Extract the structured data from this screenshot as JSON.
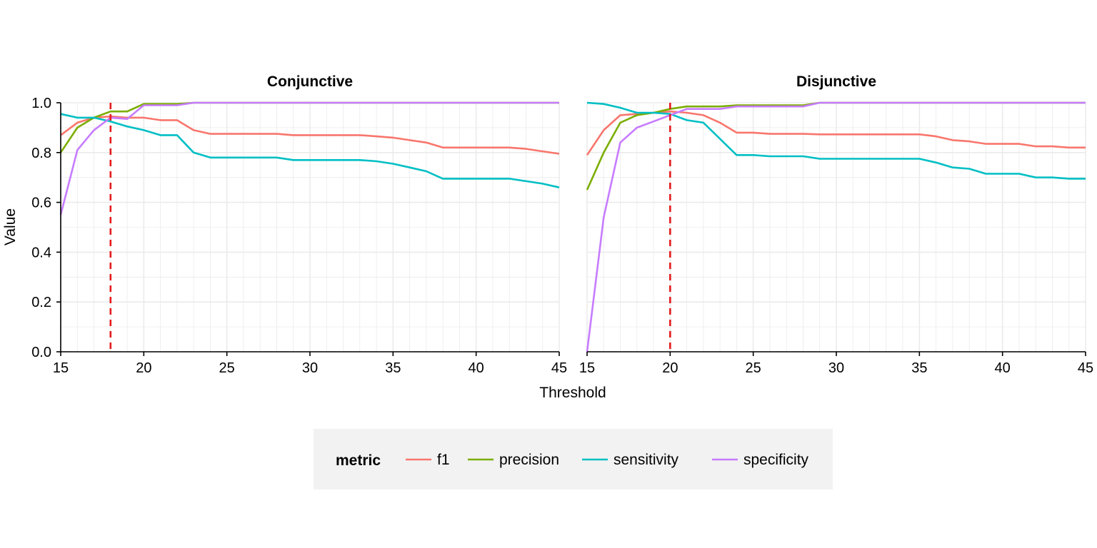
{
  "chart_data": {
    "type": "line",
    "ylabel": "Value",
    "xlabel": "Threshold",
    "xlim": [
      15,
      45
    ],
    "ylim": [
      0,
      1
    ],
    "x_ticks": [
      15,
      20,
      25,
      30,
      35,
      40,
      45
    ],
    "y_ticks": [
      "0.0",
      "0.2",
      "0.4",
      "0.6",
      "0.8",
      "1.0"
    ],
    "grid": true,
    "legend": {
      "title": "metric",
      "placement": "bottom",
      "entries": [
        "f1",
        "precision",
        "sensitivity",
        "specificity"
      ]
    },
    "colors": {
      "f1": "#F8766D",
      "precision": "#7CAE00",
      "sensitivity": "#00BFC4",
      "specificity": "#C77CFF",
      "threshold_line": "#E41A1C",
      "legend_bg": "#F2F2F2",
      "grid": "#EBEBEB"
    },
    "x": [
      15,
      16,
      17,
      18,
      19,
      20,
      21,
      22,
      23,
      24,
      25,
      26,
      27,
      28,
      29,
      30,
      31,
      32,
      33,
      34,
      35,
      36,
      37,
      38,
      39,
      40,
      41,
      42,
      43,
      44,
      45
    ],
    "panels": [
      {
        "title": "Conjunctive",
        "vline": 18,
        "series": [
          {
            "name": "f1",
            "values": [
              0.87,
              0.92,
              0.94,
              0.945,
              0.94,
              0.94,
              0.93,
              0.93,
              0.89,
              0.875,
              0.875,
              0.875,
              0.875,
              0.875,
              0.87,
              0.87,
              0.87,
              0.87,
              0.87,
              0.865,
              0.86,
              0.85,
              0.84,
              0.82,
              0.82,
              0.82,
              0.82,
              0.82,
              0.815,
              0.805,
              0.795
            ]
          },
          {
            "name": "precision",
            "values": [
              0.8,
              0.9,
              0.94,
              0.965,
              0.965,
              0.995,
              0.995,
              0.995,
              1.0,
              1.0,
              1.0,
              1.0,
              1.0,
              1.0,
              1.0,
              1.0,
              1.0,
              1.0,
              1.0,
              1.0,
              1.0,
              1.0,
              1.0,
              1.0,
              1.0,
              1.0,
              1.0,
              1.0,
              1.0,
              1.0,
              1.0
            ]
          },
          {
            "name": "sensitivity",
            "values": [
              0.955,
              0.94,
              0.94,
              0.925,
              0.905,
              0.89,
              0.87,
              0.87,
              0.8,
              0.78,
              0.78,
              0.78,
              0.78,
              0.78,
              0.77,
              0.77,
              0.77,
              0.77,
              0.77,
              0.765,
              0.755,
              0.74,
              0.725,
              0.695,
              0.695,
              0.695,
              0.695,
              0.695,
              0.685,
              0.675,
              0.66
            ]
          },
          {
            "name": "specificity",
            "values": [
              0.55,
              0.81,
              0.89,
              0.94,
              0.935,
              0.99,
              0.99,
              0.99,
              1.0,
              1.0,
              1.0,
              1.0,
              1.0,
              1.0,
              1.0,
              1.0,
              1.0,
              1.0,
              1.0,
              1.0,
              1.0,
              1.0,
              1.0,
              1.0,
              1.0,
              1.0,
              1.0,
              1.0,
              1.0,
              1.0,
              1.0
            ]
          }
        ]
      },
      {
        "title": "Disjunctive",
        "vline": 20,
        "series": [
          {
            "name": "f1",
            "values": [
              0.79,
              0.89,
              0.95,
              0.955,
              0.96,
              0.965,
              0.96,
              0.95,
              0.92,
              0.88,
              0.88,
              0.875,
              0.875,
              0.875,
              0.873,
              0.873,
              0.873,
              0.873,
              0.873,
              0.873,
              0.873,
              0.865,
              0.85,
              0.845,
              0.835,
              0.835,
              0.835,
              0.825,
              0.825,
              0.82,
              0.82
            ]
          },
          {
            "name": "precision",
            "values": [
              0.65,
              0.8,
              0.92,
              0.95,
              0.96,
              0.975,
              0.985,
              0.985,
              0.985,
              0.99,
              0.99,
              0.99,
              0.99,
              0.99,
              1.0,
              1.0,
              1.0,
              1.0,
              1.0,
              1.0,
              1.0,
              1.0,
              1.0,
              1.0,
              1.0,
              1.0,
              1.0,
              1.0,
              1.0,
              1.0,
              1.0
            ]
          },
          {
            "name": "sensitivity",
            "values": [
              1.0,
              0.995,
              0.98,
              0.96,
              0.96,
              0.955,
              0.93,
              0.92,
              0.855,
              0.79,
              0.79,
              0.785,
              0.785,
              0.785,
              0.775,
              0.775,
              0.775,
              0.775,
              0.775,
              0.775,
              0.775,
              0.76,
              0.74,
              0.735,
              0.715,
              0.715,
              0.715,
              0.7,
              0.7,
              0.695,
              0.695
            ]
          },
          {
            "name": "specificity",
            "values": [
              0.0,
              0.54,
              0.84,
              0.9,
              0.925,
              0.95,
              0.975,
              0.975,
              0.975,
              0.985,
              0.985,
              0.985,
              0.985,
              0.985,
              1.0,
              1.0,
              1.0,
              1.0,
              1.0,
              1.0,
              1.0,
              1.0,
              1.0,
              1.0,
              1.0,
              1.0,
              1.0,
              1.0,
              1.0,
              1.0,
              1.0
            ]
          }
        ]
      }
    ]
  }
}
